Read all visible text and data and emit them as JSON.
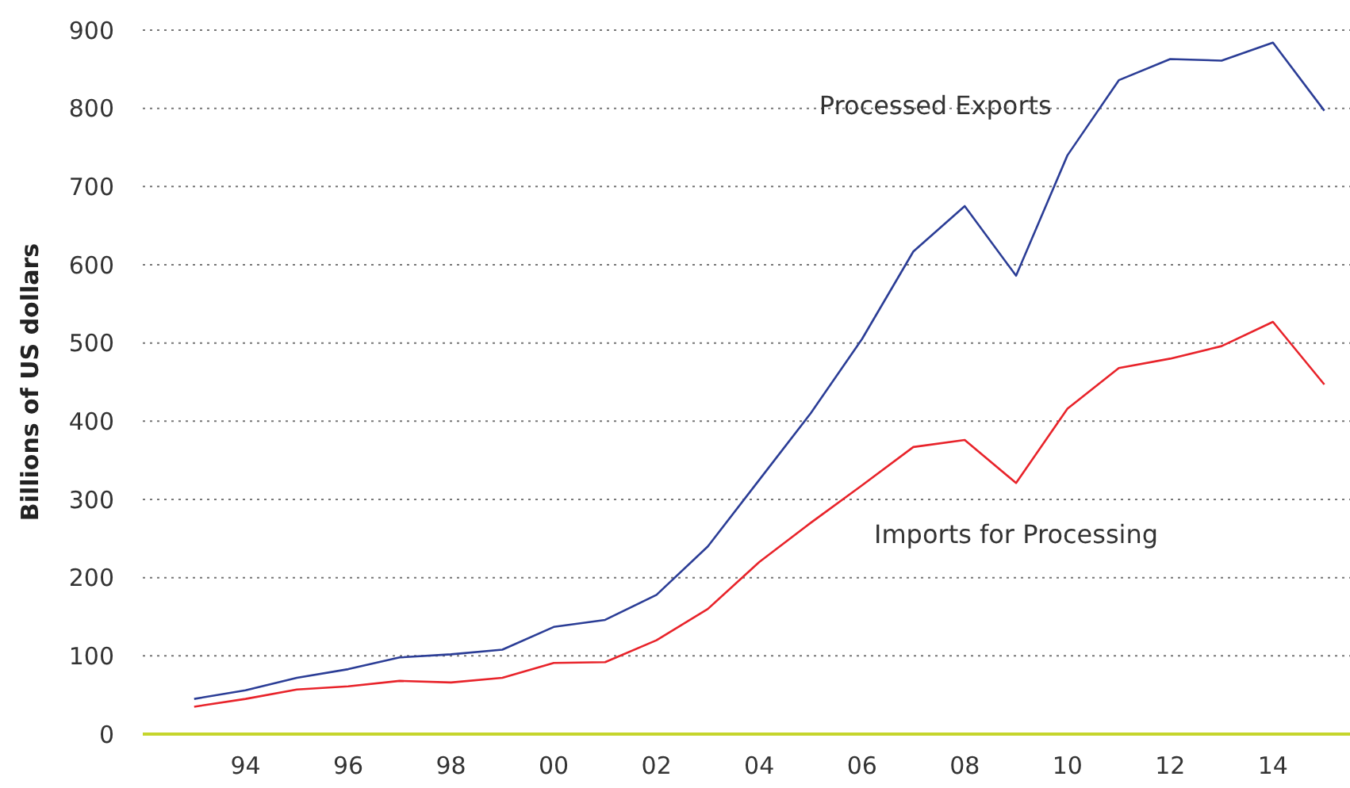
{
  "chart_data": {
    "type": "line",
    "ylabel": "Billions of US dollars",
    "x": [
      1993,
      1994,
      1995,
      1996,
      1997,
      1998,
      1999,
      2000,
      2001,
      2002,
      2003,
      2004,
      2005,
      2006,
      2007,
      2008,
      2009,
      2010,
      2011,
      2012,
      2013,
      2014,
      2015
    ],
    "series": [
      {
        "name": "Processed Exports",
        "color": "#2b3d96",
        "values": [
          45,
          56,
          72,
          83,
          98,
          102,
          108,
          137,
          146,
          178,
          240,
          325,
          410,
          505,
          617,
          675,
          586,
          740,
          836,
          863,
          861,
          884,
          797
        ]
      },
      {
        "name": "Imports for Processing",
        "color": "#e8232a",
        "values": [
          35,
          45,
          57,
          61,
          68,
          66,
          72,
          91,
          92,
          120,
          160,
          220,
          270,
          318,
          367,
          376,
          321,
          416,
          468,
          480,
          496,
          527,
          447
        ]
      }
    ],
    "xlim": [
      1992,
      2015.5
    ],
    "xticks": [
      {
        "value": 1994,
        "label": "94"
      },
      {
        "value": 1996,
        "label": "96"
      },
      {
        "value": 1998,
        "label": "98"
      },
      {
        "value": 2000,
        "label": "00"
      },
      {
        "value": 2002,
        "label": "02"
      },
      {
        "value": 2004,
        "label": "04"
      },
      {
        "value": 2006,
        "label": "06"
      },
      {
        "value": 2008,
        "label": "08"
      },
      {
        "value": 2010,
        "label": "10"
      },
      {
        "value": 2012,
        "label": "12"
      },
      {
        "value": 2014,
        "label": "14"
      }
    ],
    "ylim": [
      0,
      900
    ],
    "yticks": [
      0,
      100,
      200,
      300,
      400,
      500,
      600,
      700,
      800,
      900
    ],
    "grid": "y",
    "legend": false,
    "marker": "none",
    "line_style": "solid"
  }
}
